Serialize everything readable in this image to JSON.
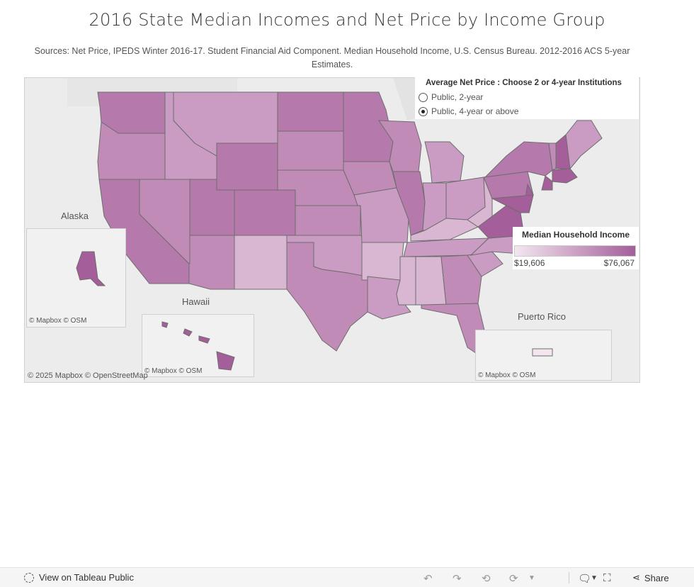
{
  "title": "2016 State Median Incomes and Net Price by Income Group",
  "subtitle": "Sources: Net Price, IPEDS Winter 2016-17. Student Financial Aid Component. Median Household Income, U.S. Census Bureau. 2012-2016 ACS 5-year Estimates.",
  "selector": {
    "title": "Average Net Price : Choose 2 or 4-year Institutions",
    "options": [
      {
        "label": "Public, 2-year",
        "selected": false
      },
      {
        "label": "Public, 4-year or above",
        "selected": true
      }
    ]
  },
  "legend": {
    "title": "Median Household Income",
    "min_label": "$19,606",
    "max_label": "$76,067",
    "color_low": "#f3e6ef",
    "color_high": "#a45e9a"
  },
  "insets": {
    "alaska": "Alaska",
    "hawaii": "Hawaii",
    "puerto_rico": "Puerto Rico"
  },
  "credits": {
    "main": "© 2025 Mapbox  © OpenStreetMap",
    "inset": "© Mapbox  © OSM"
  },
  "footer": {
    "view_link": "View on Tableau Public",
    "share": "Share"
  },
  "colors": {
    "very_high": "#a45e9a",
    "high": "#b57aab",
    "mid_high": "#c18bb8",
    "mid": "#cb9cc3",
    "low": "#d9b6d1",
    "very_low": "#f3e6ef",
    "borders": "#6d6d6d"
  },
  "states": [
    {
      "name": "Washington",
      "shade": "high"
    },
    {
      "name": "Oregon",
      "shade": "mid_high"
    },
    {
      "name": "California",
      "shade": "high"
    },
    {
      "name": "Nevada",
      "shade": "mid_high"
    },
    {
      "name": "Idaho",
      "shade": "mid"
    },
    {
      "name": "Montana",
      "shade": "mid"
    },
    {
      "name": "Wyoming",
      "shade": "high"
    },
    {
      "name": "Utah",
      "shade": "high"
    },
    {
      "name": "Colorado",
      "shade": "high"
    },
    {
      "name": "Arizona",
      "shade": "mid_high"
    },
    {
      "name": "New Mexico",
      "shade": "low"
    },
    {
      "name": "North Dakota",
      "shade": "high"
    },
    {
      "name": "South Dakota",
      "shade": "mid_high"
    },
    {
      "name": "Nebraska",
      "shade": "mid_high"
    },
    {
      "name": "Kansas",
      "shade": "mid_high"
    },
    {
      "name": "Oklahoma",
      "shade": "mid"
    },
    {
      "name": "Texas",
      "shade": "mid_high"
    },
    {
      "name": "Minnesota",
      "shade": "high"
    },
    {
      "name": "Iowa",
      "shade": "mid_high"
    },
    {
      "name": "Missouri",
      "shade": "mid"
    },
    {
      "name": "Arkansas",
      "shade": "low"
    },
    {
      "name": "Louisiana",
      "shade": "mid"
    },
    {
      "name": "Wisconsin",
      "shade": "mid_high"
    },
    {
      "name": "Illinois",
      "shade": "high"
    },
    {
      "name": "Michigan",
      "shade": "mid"
    },
    {
      "name": "Indiana",
      "shade": "mid"
    },
    {
      "name": "Ohio",
      "shade": "mid"
    },
    {
      "name": "Kentucky",
      "shade": "low"
    },
    {
      "name": "Tennessee",
      "shade": "mid"
    },
    {
      "name": "Mississippi",
      "shade": "low"
    },
    {
      "name": "Alabama",
      "shade": "low"
    },
    {
      "name": "Georgia",
      "shade": "mid_high"
    },
    {
      "name": "Florida",
      "shade": "mid_high"
    },
    {
      "name": "South Carolina",
      "shade": "mid"
    },
    {
      "name": "North Carolina",
      "shade": "mid"
    },
    {
      "name": "Virginia",
      "shade": "very_high"
    },
    {
      "name": "West Virginia",
      "shade": "low"
    },
    {
      "name": "Pennsylvania",
      "shade": "high"
    },
    {
      "name": "New York",
      "shade": "high"
    },
    {
      "name": "Vermont",
      "shade": "mid_high"
    },
    {
      "name": "New Hampshire",
      "shade": "very_high"
    },
    {
      "name": "Maine",
      "shade": "mid"
    },
    {
      "name": "Massachusetts",
      "shade": "very_high"
    },
    {
      "name": "Connecticut",
      "shade": "very_high"
    },
    {
      "name": "New Jersey",
      "shade": "very_high"
    },
    {
      "name": "Maryland",
      "shade": "very_high"
    },
    {
      "name": "Alaska",
      "shade": "very_high"
    },
    {
      "name": "Hawaii",
      "shade": "very_high"
    },
    {
      "name": "Puerto Rico",
      "shade": "very_low"
    }
  ]
}
